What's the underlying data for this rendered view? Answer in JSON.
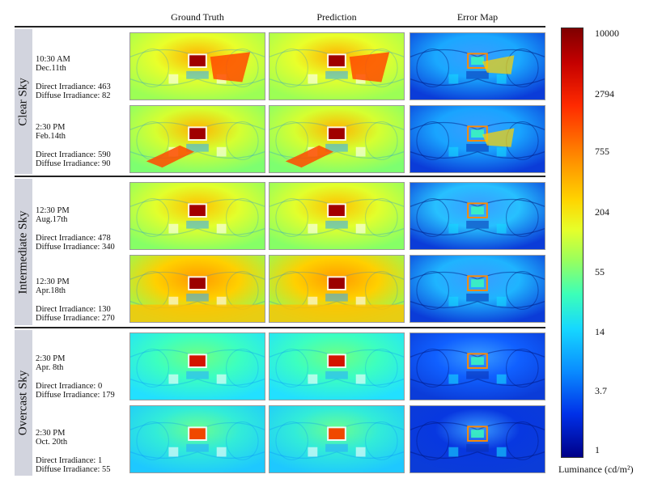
{
  "columns": [
    "Ground Truth",
    "Prediction",
    "Error Map"
  ],
  "groups": [
    {
      "label": "Clear Sky",
      "rows": [
        {
          "time": "10:30 AM",
          "date": "Dec.11th",
          "direct": "Direct Irradiance: 463",
          "diffuse": "Diffuse Irradiance: 82"
        },
        {
          "time": "2:30 PM",
          "date": "Feb.14th",
          "direct": "Direct Irradiance: 590",
          "diffuse": "Diffuse Irradiance: 90"
        }
      ]
    },
    {
      "label": "Intermediate Sky",
      "rows": [
        {
          "time": "12:30 PM",
          "date": "Aug.17th",
          "direct": "Direct Irradiance: 478",
          "diffuse": "Diffuse Irradiance: 340"
        },
        {
          "time": "12:30 PM",
          "date": "Apr.18th",
          "direct": "Direct Irradiance: 130",
          "diffuse": "Diffuse Irradiance: 270"
        }
      ]
    },
    {
      "label": "Overcast Sky",
      "rows": [
        {
          "time": "2:30 PM",
          "date": "Apr. 8th",
          "direct": "Direct Irradiance: 0",
          "diffuse": "Diffuse Irradiance: 179"
        },
        {
          "time": "2:30 PM",
          "date": "Oct. 20th",
          "direct": "Direct Irradiance: 1",
          "diffuse": "Diffuse Irradiance: 55"
        }
      ]
    }
  ],
  "colorbar": {
    "ticks": [
      "10000",
      "2794",
      "755",
      "204",
      "55",
      "14",
      "3.7",
      "1"
    ],
    "title": "Luminance (cd/m²)",
    "colormap": "jet"
  }
}
